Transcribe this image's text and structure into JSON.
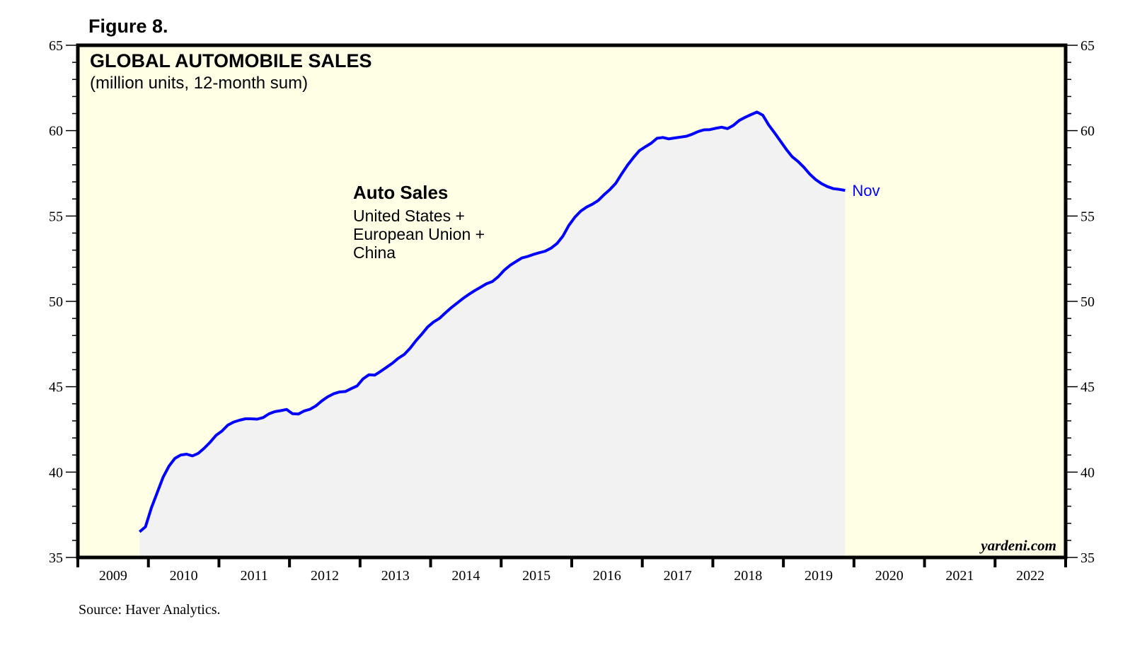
{
  "figure_label": "Figure 8.",
  "source": "Source: Haver Analytics.",
  "watermark": "yardeni.com",
  "colors": {
    "plot_background": "#FFFFE6",
    "area_fill": "#F2F2F2",
    "line": "#0000FF",
    "frame": "#000000"
  },
  "chart_data": {
    "type": "area",
    "title": "GLOBAL AUTOMOBILE SALES",
    "subtitle": "(million units, 12-month sum)",
    "xlabel": "",
    "ylabel": "",
    "ylim": [
      35,
      65
    ],
    "y_ticks": [
      35,
      40,
      45,
      50,
      55,
      60,
      65
    ],
    "y_minor_step": 1,
    "y_axis_sides": [
      "left",
      "right"
    ],
    "x_range": [
      "2009-01",
      "2022-12"
    ],
    "x_tick_labels": [
      "2009",
      "2010",
      "2011",
      "2012",
      "2013",
      "2014",
      "2015",
      "2016",
      "2017",
      "2018",
      "2019",
      "2020",
      "2021",
      "2022"
    ],
    "grid": false,
    "annotation": {
      "title": "Auto Sales",
      "lines": [
        "United States +",
        "European Union +",
        "China"
      ]
    },
    "end_label": "Nov",
    "series": [
      {
        "name": "Auto Sales: United States + European Union + China",
        "start": "2009-11",
        "frequency": "monthly",
        "values": [
          36.5,
          36.8,
          37.9,
          38.8,
          39.7,
          40.35,
          40.8,
          41.0,
          41.05,
          40.95,
          41.1,
          41.4,
          41.75,
          42.15,
          42.4,
          42.75,
          42.93,
          43.04,
          43.12,
          43.12,
          43.1,
          43.19,
          43.41,
          43.54,
          43.6,
          43.67,
          43.42,
          43.4,
          43.58,
          43.68,
          43.88,
          44.17,
          44.41,
          44.59,
          44.69,
          44.72,
          44.89,
          45.05,
          45.46,
          45.7,
          45.68,
          45.9,
          46.14,
          46.38,
          46.67,
          46.89,
          47.25,
          47.69,
          48.08,
          48.5,
          48.79,
          49.0,
          49.32,
          49.63,
          49.9,
          50.17,
          50.41,
          50.63,
          50.83,
          51.03,
          51.16,
          51.44,
          51.82,
          52.11,
          52.33,
          52.54,
          52.63,
          52.75,
          52.85,
          52.94,
          53.12,
          53.39,
          53.82,
          54.44,
          54.92,
          55.28,
          55.52,
          55.69,
          55.91,
          56.25,
          56.55,
          56.92,
          57.47,
          57.98,
          58.43,
          58.83,
          59.05,
          59.26,
          59.55,
          59.6,
          59.52,
          59.57,
          59.62,
          59.67,
          59.79,
          59.95,
          60.05,
          60.06,
          60.14,
          60.2,
          60.12,
          60.31,
          60.6,
          60.78,
          60.94,
          61.09,
          60.9,
          60.33,
          59.87,
          59.39,
          58.9,
          58.47,
          58.19,
          57.85,
          57.45,
          57.13,
          56.89,
          56.72,
          56.6,
          56.56,
          56.5
        ]
      }
    ]
  }
}
